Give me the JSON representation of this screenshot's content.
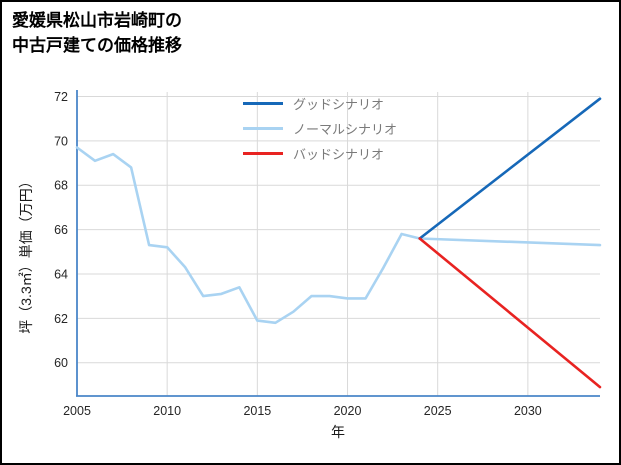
{
  "header": {
    "title_line1": "愛媛県松山市岩崎町の",
    "title_line2": "中古戸建ての価格推移"
  },
  "chart_data": {
    "type": "line",
    "title": "愛媛県松山市岩崎町の中古戸建ての価格推移",
    "xlabel": "年",
    "ylabel": "坪（3.3㎡）単価（万円）",
    "xlim": [
      2005,
      2034
    ],
    "ylim": [
      58.5,
      72.2
    ],
    "xticks": [
      2005,
      2010,
      2015,
      2020,
      2025,
      2030
    ],
    "yticks": [
      60,
      62,
      64,
      66,
      68,
      70,
      72
    ],
    "grid": true,
    "grid_color": "#d9d9d9",
    "axis_color": "#4a86c8",
    "legend_position": "upper center",
    "series": [
      {
        "name": "グッドシナリオ",
        "color": "#1668b8",
        "x": [
          2024,
          2034
        ],
        "y": [
          65.6,
          71.9
        ]
      },
      {
        "name": "ノーマルシナリオ",
        "color": "#a9d3f2",
        "x": [
          2005,
          2006,
          2007,
          2008,
          2009,
          2010,
          2011,
          2012,
          2013,
          2014,
          2015,
          2016,
          2017,
          2018,
          2019,
          2020,
          2021,
          2022,
          2023,
          2024,
          2034
        ],
        "y": [
          69.7,
          69.1,
          69.4,
          68.8,
          65.3,
          65.2,
          64.3,
          63.0,
          63.1,
          63.4,
          61.9,
          61.8,
          62.3,
          63.0,
          63.0,
          62.9,
          62.9,
          64.3,
          65.8,
          65.6,
          65.3
        ]
      },
      {
        "name": "バッドシナリオ",
        "color": "#e82321",
        "x": [
          2024,
          2034
        ],
        "y": [
          65.6,
          58.9
        ]
      }
    ]
  }
}
